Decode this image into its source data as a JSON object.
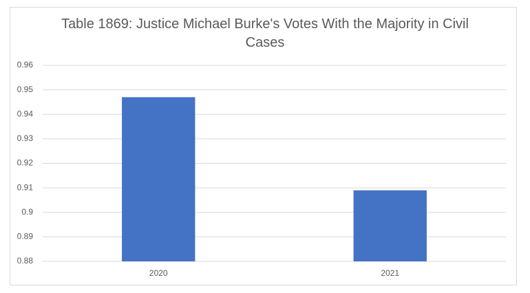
{
  "chart_data": {
    "type": "bar",
    "title": "Table 1869: Justice Michael Burke's Votes With the Majority in Civil Cases",
    "categories": [
      "2020",
      "2021"
    ],
    "values": [
      0.947,
      0.909
    ],
    "color": "#4472c4",
    "ylim": [
      0.88,
      0.96
    ],
    "yticks": [
      0.88,
      0.89,
      0.9,
      0.91,
      0.92,
      0.93,
      0.94,
      0.95,
      0.96
    ],
    "grid": true
  }
}
